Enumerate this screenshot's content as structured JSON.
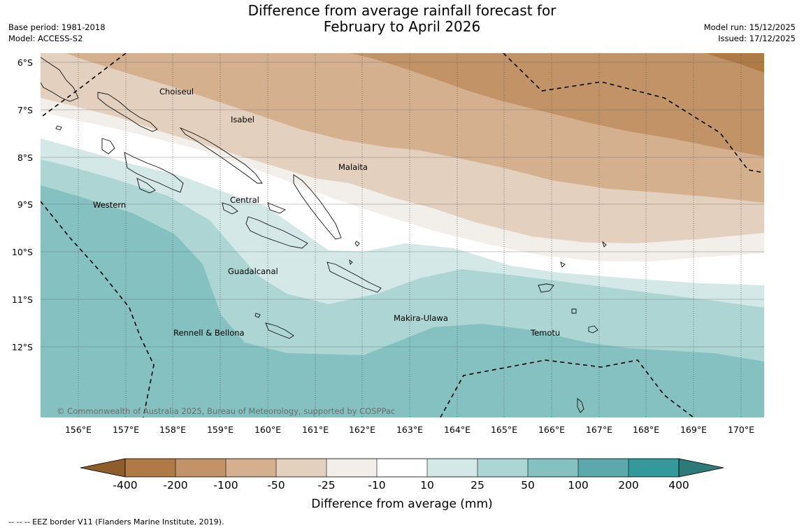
{
  "title": {
    "line1": "Difference from average rainfall forecast for",
    "line2": "February to April 2026"
  },
  "meta_left": {
    "base_period": "Base period: 1981-2018",
    "model": "Model: ACCESS-S2"
  },
  "meta_right": {
    "model_run": "Model run: 15/12/2025",
    "issued": "Issued: 17/12/2025"
  },
  "map": {
    "lat_labels": [
      "6°S",
      "7°S",
      "8°S",
      "9°S",
      "10°S",
      "11°S",
      "12°S"
    ],
    "lat_values": [
      6,
      7,
      8,
      9,
      10,
      11,
      12
    ],
    "lon_labels": [
      "156°E",
      "157°E",
      "158°E",
      "159°E",
      "160°E",
      "161°E",
      "162°E",
      "163°E",
      "164°E",
      "165°E",
      "166°E",
      "167°E",
      "168°E",
      "169°E",
      "170°E"
    ],
    "lon_values": [
      156,
      157,
      158,
      159,
      160,
      161,
      162,
      163,
      164,
      165,
      166,
      167,
      168,
      169,
      170
    ],
    "lon_range": [
      155.3,
      170.5
    ],
    "lat_range": [
      5.8,
      13.5
    ],
    "place_labels": [
      {
        "name": "Choiseul",
        "lon": 157.2,
        "lat": 6.6
      },
      {
        "name": "Isabel",
        "lon": 159.2,
        "lat": 7.2
      },
      {
        "name": "Malaita",
        "lon": 161.3,
        "lat": 8.2
      },
      {
        "name": "Central",
        "lon": 159.2,
        "lat": 8.9
      },
      {
        "name": "Western",
        "lon": 156.1,
        "lat": 9.0
      },
      {
        "name": "Guadalcanal",
        "lon": 159.7,
        "lat": 10.4
      },
      {
        "name": "Makira-Ulawa",
        "lon": 162.6,
        "lat": 11.4
      },
      {
        "name": "Rennell & Bellona",
        "lon": 158.0,
        "lat": 11.7
      },
      {
        "name": "Temotu",
        "lon": 165.6,
        "lat": 11.7
      }
    ],
    "copyright": "© Commonwealth of Australia 2025, Bureau of Meteorology, supported by COSPPac"
  },
  "colorbar": {
    "tick_labels": [
      "-400",
      "-200",
      "-100",
      "-50",
      "-25",
      "-10",
      "10",
      "25",
      "50",
      "100",
      "200",
      "400"
    ],
    "bin_colors": [
      "#b07a46",
      "#c29367",
      "#d4b08f",
      "#e4d0bf",
      "#f2eee9",
      "#ffffff",
      "#d4e8e7",
      "#acd5d4",
      "#84c1c0",
      "#5ba9aa",
      "#34999a"
    ],
    "extend_low_color": "#8f5c2b",
    "extend_high_color": "#2d7a7a",
    "label": "Difference from average (mm)"
  },
  "footnote": "--  --  -- EEZ border V11 (Flanders Marine Institute, 2019)."
}
